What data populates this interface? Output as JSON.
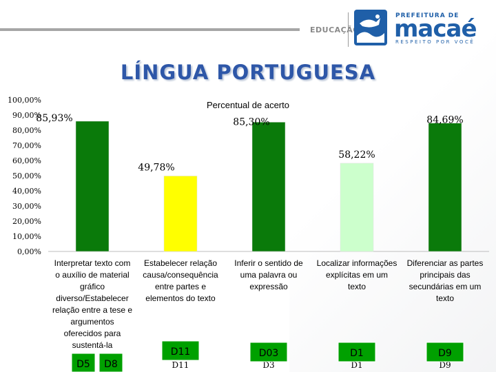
{
  "header": {
    "department": "EDUCAÇÃO",
    "logo_top": "PREFEITURA DE",
    "logo_name": "macaé",
    "logo_tagline": "RESPEITO POR VOCÊ"
  },
  "slide_title": "LÍNGUA PORTUGUESA",
  "colors": {
    "title": "#2e57a8",
    "dark_green": "#0a7a0a",
    "yellow": "#ffff00",
    "light_green": "#ccffcc",
    "descriptor_box": "#00a000"
  },
  "chart_data": {
    "type": "bar",
    "title": "Percentual de acerto",
    "categories": [
      "Interpretar texto com o auxílio de material gráfico diverso/Estabelecer relação entre a tese e argumentos oferecidos para sustentá-la",
      "Estabelecer relação causa/consequência entre partes e elementos do texto",
      "Inferir o sentido de uma palavra ou expressão",
      "Localizar informações explícitas em um texto",
      "Diferenciar as partes principais das secundárias em um texto"
    ],
    "category_lines": [
      [
        "Interpretar texto com",
        "o auxílio de material",
        "gráfico",
        "diverso/Estabelecer",
        "relação entre a tese e",
        "argumentos",
        "oferecidos para",
        "sustentá-la"
      ],
      [
        "Estabelecer relação",
        "causa/consequência",
        "entre partes e",
        "elementos do texto"
      ],
      [
        "Inferir o sentido de",
        "uma palavra ou",
        "expressão"
      ],
      [
        "Localizar informações",
        "explícitas em um",
        "texto"
      ],
      [
        "Diferenciar as partes",
        "principais das",
        "secundárias em um",
        "texto"
      ]
    ],
    "values": [
      85.93,
      49.78,
      85.3,
      58.22,
      84.69
    ],
    "value_labels": [
      "85,93%",
      "49,78%",
      "85,30%",
      "58,22%",
      "84,69%"
    ],
    "bar_colors": [
      "#0a7a0a",
      "#ffff00",
      "#0a7a0a",
      "#ccffcc",
      "#0a7a0a"
    ],
    "ylim": [
      0,
      100
    ],
    "y_ticks": [
      0,
      10,
      20,
      30,
      40,
      50,
      60,
      70,
      80,
      90,
      100
    ],
    "y_tick_labels": [
      "0,00%",
      "10,00%",
      "20,00%",
      "30,00%",
      "40,00%",
      "50,00%",
      "60,00%",
      "70,00%",
      "80,00%",
      "90,00%",
      "100,00%"
    ],
    "grid": false,
    "legend": "none",
    "descriptors": [
      [
        "D5",
        "D8"
      ],
      [
        "D11"
      ],
      [
        "D03"
      ],
      [
        "D1"
      ],
      [
        "D9"
      ]
    ],
    "descriptors_behind": [
      [],
      [
        "D11"
      ],
      [
        "D3"
      ],
      [
        "D1"
      ],
      [
        "D9"
      ]
    ]
  }
}
